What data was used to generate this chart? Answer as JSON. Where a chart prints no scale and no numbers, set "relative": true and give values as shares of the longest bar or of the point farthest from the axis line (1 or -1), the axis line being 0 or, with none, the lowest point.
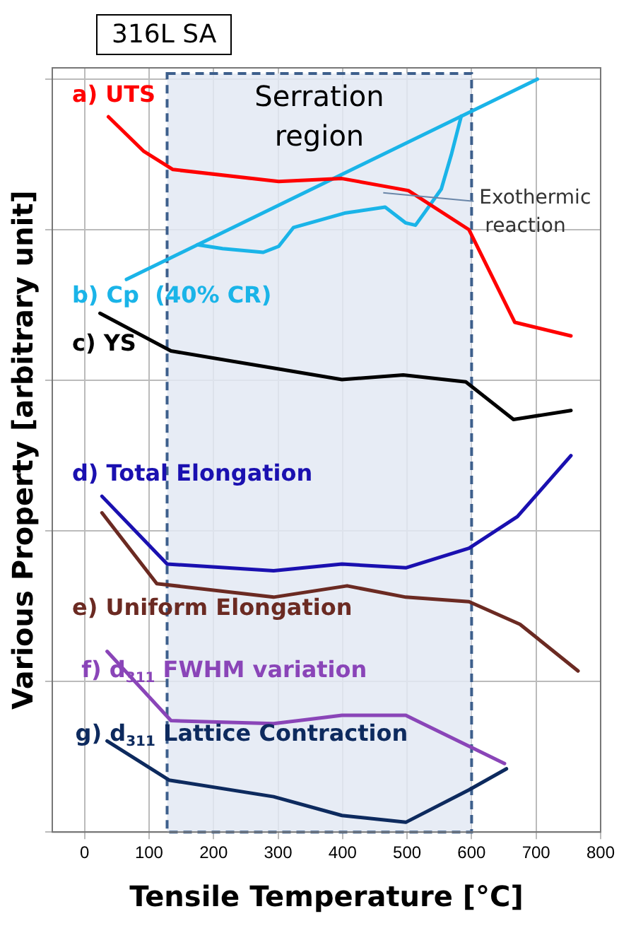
{
  "chart_data": {
    "type": "line",
    "title": "316L SA",
    "xlabel": "Tensile Temperature [°C]",
    "ylabel": "Various Property [arbitrary unit]",
    "relative": true,
    "xlim": [
      -50,
      800
    ],
    "xticks": [
      0,
      100,
      200,
      300,
      400,
      500,
      600,
      700,
      800
    ],
    "grid": true,
    "tick_labels": "x",
    "legend": false,
    "marker": "none",
    "line_style": "solid",
    "bands": [
      {
        "axis": "x",
        "from": 128,
        "to": 600,
        "label": "Serration region",
        "color": "#e3e9f3"
      }
    ],
    "annotations": [
      {
        "text": "Exothermic reaction",
        "x": 463,
        "y": 0.849
      }
    ],
    "series": [
      {
        "name": "a) UTS",
        "color": "#ff0000",
        "x": [
          37,
          92,
          137,
          301,
          399,
          502,
          596,
          667,
          754
        ],
        "values": [
          0.95,
          0.904,
          0.88,
          0.864,
          0.868,
          0.852,
          0.8,
          0.677,
          0.659
        ]
      },
      {
        "name": "b) Cp  (40% CR)",
        "color": "#1ab4e8",
        "x": [
          65,
          702
        ],
        "values": [
          0.734,
          1.0
        ]
      },
      {
        "color": "#1ab4e8",
        "x": [
          175,
          214,
          277,
          301,
          324,
          403,
          466,
          498,
          513,
          529,
          553,
          569,
          584
        ],
        "values": [
          0.78,
          0.775,
          0.77,
          0.778,
          0.803,
          0.822,
          0.83,
          0.809,
          0.806,
          0.825,
          0.854,
          0.901,
          0.951
        ]
      },
      {
        "name": "c) YS",
        "color": "#000000",
        "x": [
          24,
          134,
          301,
          399,
          494,
          591,
          665,
          754
        ],
        "values": [
          0.689,
          0.639,
          0.615,
          0.601,
          0.607,
          0.598,
          0.548,
          0.56
        ]
      },
      {
        "name": "d) Total Elongation",
        "color": "#1a10b0",
        "x": [
          27,
          128,
          293,
          399,
          498,
          596,
          671,
          754
        ],
        "values": [
          0.446,
          0.356,
          0.347,
          0.356,
          0.351,
          0.377,
          0.419,
          0.5
        ]
      },
      {
        "name": "e) Uniform Elongation",
        "color": "#6b2a22",
        "x": [
          27,
          112,
          293,
          407,
          498,
          596,
          675,
          765
        ],
        "values": [
          0.424,
          0.33,
          0.312,
          0.327,
          0.312,
          0.306,
          0.276,
          0.214
        ]
      },
      {
        "name": "f) d$_{311}$ FWHM variation",
        "color": "#8a45b8",
        "x": [
          35,
          134,
          293,
          399,
          498,
          651
        ],
        "values": [
          0.24,
          0.148,
          0.144,
          0.155,
          0.155,
          0.091
        ]
      },
      {
        "name": "g) d$_{311}$ Lattice Contraction",
        "color": "#0d2a5e",
        "x": [
          35,
          131,
          293,
          399,
          498,
          596,
          654
        ],
        "values": [
          0.121,
          0.069,
          0.047,
          0.022,
          0.013,
          0.056,
          0.084
        ]
      }
    ]
  }
}
